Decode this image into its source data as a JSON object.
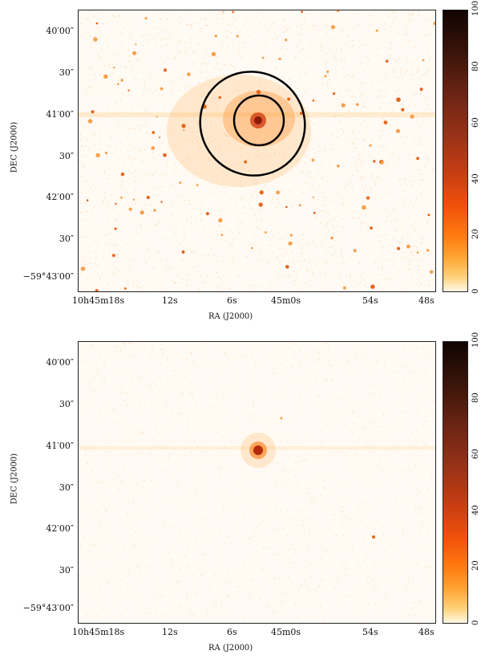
{
  "panels": [
    {
      "id": "top",
      "y_axis_label": "DEC (J2000)",
      "x_axis_label": "RA (J2000)",
      "y_ticks": [
        "40′00″",
        "30″",
        "41′00″",
        "30″",
        "42′00″",
        "30″",
        "−59°43′00″"
      ],
      "x_ticks": [
        "10h45m18s",
        "12s",
        "6s",
        "45m0s",
        "54s",
        "48s"
      ],
      "colorbar_ticks": [
        "0",
        "20",
        "40",
        "60",
        "80",
        "100"
      ]
    },
    {
      "id": "bottom",
      "y_axis_label": "DEC (J2000)",
      "x_axis_label": "RA (J2000)",
      "y_ticks": [
        "40′00″",
        "30″",
        "41′00″",
        "30″",
        "42′00″",
        "30″",
        "−59°43′00″"
      ],
      "x_ticks": [
        "10h45m18s",
        "12s",
        "6s",
        "45m0s",
        "54s",
        "48s"
      ],
      "colorbar_ticks": [
        "0",
        "20",
        "40",
        "60",
        "80",
        "100"
      ]
    }
  ],
  "colors": {
    "background": "#fffaf3",
    "low": "#ffd27a",
    "mid": "#ff7a10",
    "high": "#8b1a0a",
    "ellipse": "#000000"
  }
}
